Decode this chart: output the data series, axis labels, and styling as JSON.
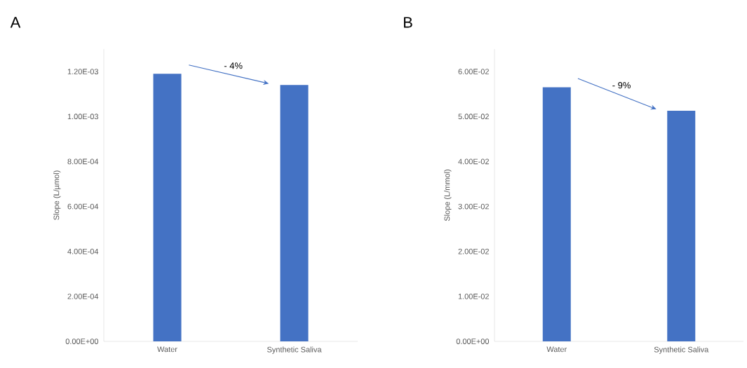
{
  "chart_data": [
    {
      "type": "bar",
      "title": "A",
      "ylabel": "Slope (L/µmol)",
      "categories": [
        "Water",
        "Synthetic Saliva"
      ],
      "values": [
        0.00119,
        0.00114
      ],
      "color": "#4472c4",
      "ylim": [
        0,
        0.0013
      ],
      "yticks": [
        {
          "value": 0,
          "label": "0.00E+00"
        },
        {
          "value": 0.0002,
          "label": "2.00E-04"
        },
        {
          "value": 0.0004,
          "label": "4.00E-04"
        },
        {
          "value": 0.0006,
          "label": "6.00E-04"
        },
        {
          "value": 0.0008,
          "label": "8.00E-04"
        },
        {
          "value": 0.001,
          "label": "1.00E-03"
        },
        {
          "value": 0.0012,
          "label": "1.20E-03"
        }
      ],
      "annotations": [
        "- 4%"
      ]
    },
    {
      "type": "bar",
      "title": "B",
      "ylabel": "Slope (L/mmol)",
      "categories": [
        "Water",
        "Synthetic Saliva"
      ],
      "values": [
        0.0565,
        0.0513
      ],
      "color": "#4472c4",
      "ylim": [
        0,
        0.065
      ],
      "yticks": [
        {
          "value": 0,
          "label": "0.00E+00"
        },
        {
          "value": 0.01,
          "label": "1.00E-02"
        },
        {
          "value": 0.02,
          "label": "2.00E-02"
        },
        {
          "value": 0.03,
          "label": "3.00E-02"
        },
        {
          "value": 0.04,
          "label": "4.00E-02"
        },
        {
          "value": 0.05,
          "label": "5.00E-02"
        },
        {
          "value": 0.06,
          "label": "6.00E-02"
        }
      ],
      "annotations": [
        "- 9%"
      ]
    }
  ]
}
